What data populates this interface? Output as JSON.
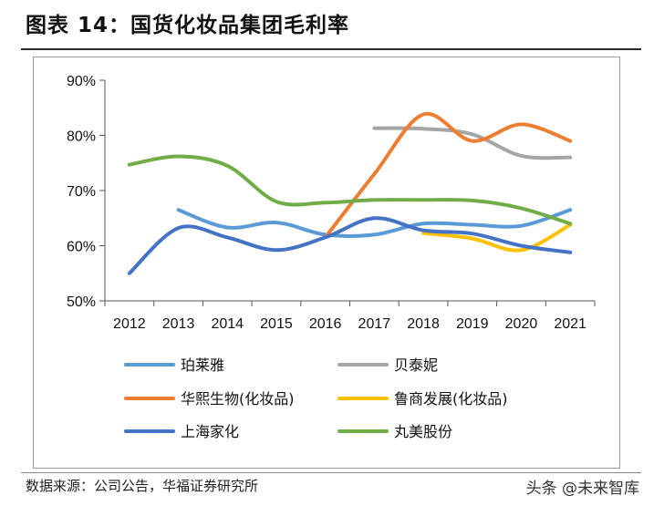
{
  "title": "图表 14：国货化妆品集团毛利率",
  "source": "数据来源：公司公告，华福证券研究所",
  "watermark": "头条 @未来智库",
  "chart_data": {
    "type": "line",
    "x": [
      "2012",
      "2013",
      "2014",
      "2015",
      "2016",
      "2017",
      "2018",
      "2019",
      "2020",
      "2021"
    ],
    "yticks": [
      "50%",
      "60%",
      "70%",
      "80%",
      "90%"
    ],
    "ylim": [
      50,
      90
    ],
    "series": [
      {
        "name": "珀莱雅",
        "color": "#5B9BD5",
        "values": [
          null,
          66.5,
          63.3,
          64.2,
          62.0,
          62.0,
          64.0,
          63.8,
          63.6,
          66.5
        ]
      },
      {
        "name": "贝泰妮",
        "color": "#A5A5A5",
        "values": [
          null,
          null,
          null,
          null,
          null,
          81.3,
          81.2,
          80.2,
          76.3,
          76.0
        ]
      },
      {
        "name": "华熙生物(化妆品)",
        "color": "#ED7D31",
        "values": [
          null,
          null,
          null,
          null,
          61.5,
          73.0,
          83.8,
          79.0,
          82.0,
          79.0
        ]
      },
      {
        "name": "鲁商发展(化妆品)",
        "color": "#FFC000",
        "values": [
          null,
          null,
          null,
          null,
          null,
          null,
          62.3,
          61.3,
          59.2,
          63.8
        ]
      },
      {
        "name": "上海家化",
        "color": "#4472C4",
        "values": [
          55.0,
          63.2,
          61.5,
          59.2,
          61.5,
          65.0,
          62.8,
          62.2,
          60.0,
          58.8
        ]
      },
      {
        "name": "丸美股份",
        "color": "#70AD47",
        "values": [
          74.7,
          76.2,
          74.5,
          68.0,
          67.8,
          68.3,
          68.3,
          68.2,
          66.8,
          64.0
        ]
      }
    ],
    "legend_position": "bottom"
  }
}
